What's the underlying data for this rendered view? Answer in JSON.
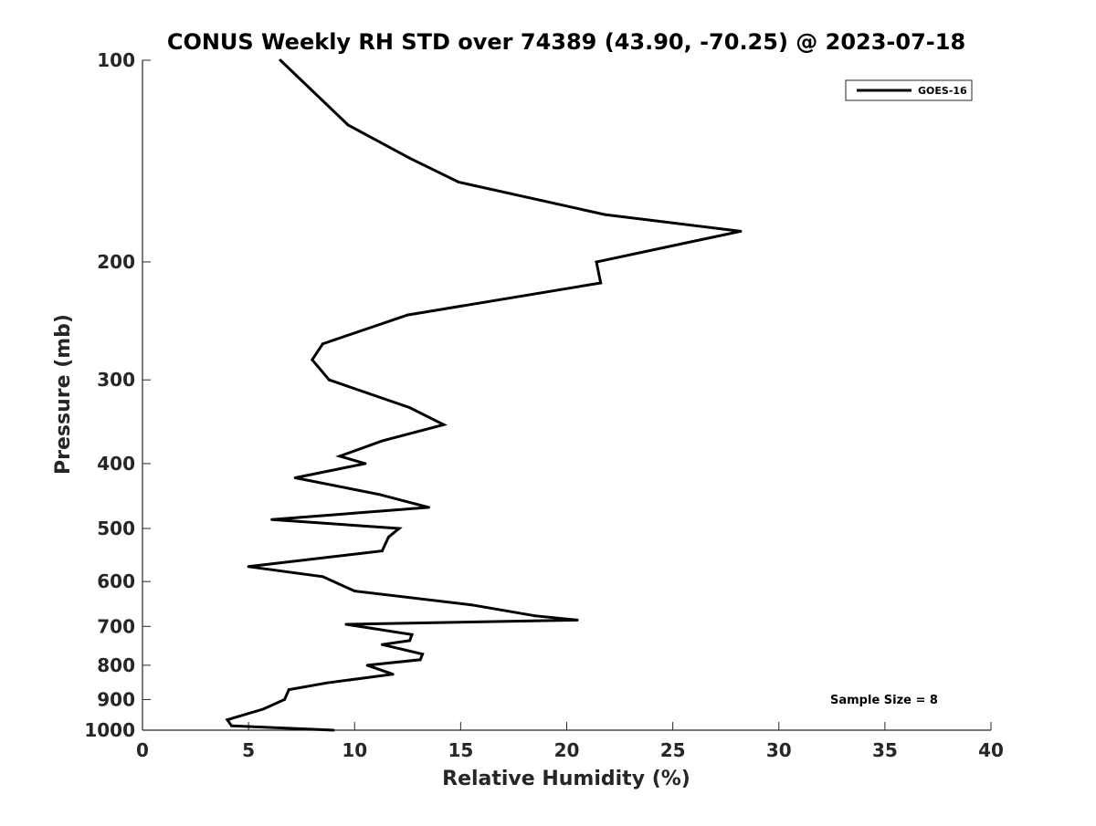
{
  "chart_data": {
    "type": "line",
    "title": "CONUS Weekly RH STD over 74389 (43.90, -70.25) @ 2023-07-18",
    "xlabel": "Relative Humidity (%)",
    "ylabel": "Pressure (mb)",
    "xlim": [
      0,
      40
    ],
    "ylim": [
      100,
      1000
    ],
    "y_scale": "log",
    "y_reversed": true,
    "grid": false,
    "legend_position": "top-right",
    "x_ticks": [
      "0",
      "5",
      "10",
      "15",
      "20",
      "25",
      "30",
      "35",
      "40"
    ],
    "y_ticks": [
      "100",
      "200",
      "300",
      "400",
      "500",
      "600",
      "700",
      "800",
      "900",
      "1000"
    ],
    "annotation": "Sample Size = 8",
    "series": [
      {
        "name": "GOES-16",
        "color": "#000000",
        "points": [
          [
            6.5,
            100
          ],
          [
            9.7,
            125
          ],
          [
            12.6,
            140
          ],
          [
            14.9,
            152
          ],
          [
            21.8,
            170
          ],
          [
            28.2,
            180
          ],
          [
            21.4,
            200
          ],
          [
            21.6,
            215
          ],
          [
            12.5,
            240
          ],
          [
            8.5,
            265
          ],
          [
            8.0,
            280
          ],
          [
            8.8,
            300
          ],
          [
            12.6,
            330
          ],
          [
            14.2,
            350
          ],
          [
            11.3,
            370
          ],
          [
            9.3,
            390
          ],
          [
            10.5,
            400
          ],
          [
            7.2,
            420
          ],
          [
            11.2,
            445
          ],
          [
            13.5,
            465
          ],
          [
            6.1,
            485
          ],
          [
            12.1,
            500
          ],
          [
            11.6,
            515
          ],
          [
            11.3,
            540
          ],
          [
            5.0,
            570
          ],
          [
            8.5,
            590
          ],
          [
            10.0,
            620
          ],
          [
            15.5,
            650
          ],
          [
            18.5,
            675
          ],
          [
            20.5,
            685
          ],
          [
            9.6,
            695
          ],
          [
            12.7,
            720
          ],
          [
            12.6,
            735
          ],
          [
            11.3,
            745
          ],
          [
            13.2,
            770
          ],
          [
            13.1,
            785
          ],
          [
            10.6,
            800
          ],
          [
            11.8,
            825
          ],
          [
            8.7,
            850
          ],
          [
            6.9,
            870
          ],
          [
            6.7,
            900
          ],
          [
            5.7,
            930
          ],
          [
            4.0,
            965
          ],
          [
            4.2,
            985
          ],
          [
            9.0,
            1000
          ]
        ]
      }
    ]
  }
}
